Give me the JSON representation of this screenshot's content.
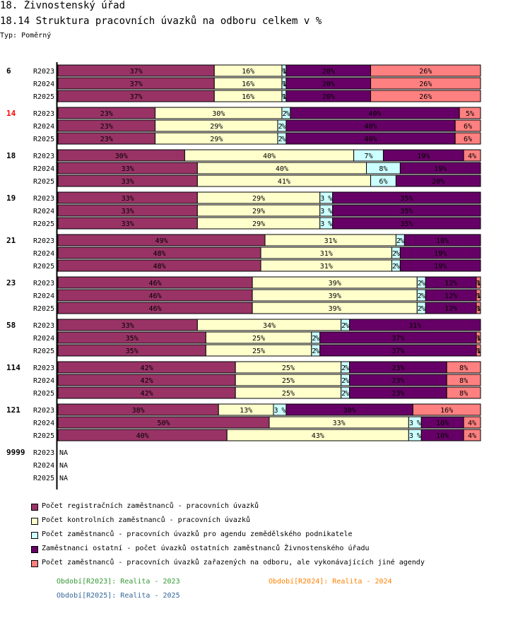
{
  "header": {
    "title": "18. Živnostenský úřad",
    "subtitle": "18.14 Struktura pracovních úvazků na odboru celkem v %",
    "typ": "Typ: Poměrný"
  },
  "chart_data": {
    "type": "bar",
    "orientation": "horizontal",
    "stacked": true,
    "normalized": true,
    "title": "18.14 Struktura pracovních úvazků na odboru celkem v %",
    "xlim": [
      0,
      100
    ],
    "unit": "%",
    "series": [
      {
        "name": "Počet registračních zaměstnanců - pracovních úvazků",
        "color": "#993366"
      },
      {
        "name": "Počet kontrolních zaměstnanců - pracovních úvazků",
        "color": "#ffffcc"
      },
      {
        "name": "Počet zaměstnanců - pracovních úvazků pro agendu zemědělského podnikatele",
        "color": "#ccffff"
      },
      {
        "name": "Zaměstnanci ostatní - počet úvazků ostatních zaměstnanců Živnostenského úřadu",
        "color": "#660066"
      },
      {
        "name": "Počet zaměstnanců - pracovních úvazků zařazených na odboru, ale vykonávajících jiné agendy",
        "color": "#ff8080"
      }
    ],
    "groups": [
      {
        "id": "6",
        "highlight": false,
        "rows": [
          {
            "period": "R2023",
            "values": [
              37,
              16,
              1,
              20,
              26
            ],
            "labels": [
              "37%",
              "16%",
              "1%",
              "20%",
              "26%"
            ]
          },
          {
            "period": "R2024",
            "values": [
              37,
              16,
              1,
              20,
              26
            ],
            "labels": [
              "37%",
              "16%",
              "1%",
              "20%",
              "26%"
            ]
          },
          {
            "period": "R2025",
            "values": [
              37,
              16,
              1,
              20,
              26
            ],
            "labels": [
              "37%",
              "16%",
              "1%",
              "20%",
              "26%"
            ]
          }
        ]
      },
      {
        "id": "14",
        "highlight": true,
        "rows": [
          {
            "period": "R2023",
            "values": [
              23,
              30,
              2,
              40,
              5
            ],
            "labels": [
              "23%",
              "30%",
              "2%",
              "40%",
              "5%"
            ]
          },
          {
            "period": "R2024",
            "values": [
              23,
              29,
              2,
              40,
              6
            ],
            "labels": [
              "23%",
              "29%",
              "2%",
              "40%",
              "6%"
            ]
          },
          {
            "period": "R2025",
            "values": [
              23,
              29,
              2,
              40,
              6
            ],
            "labels": [
              "23%",
              "29%",
              "2%",
              "40%",
              "6%"
            ]
          }
        ]
      },
      {
        "id": "18",
        "highlight": false,
        "rows": [
          {
            "period": "R2023",
            "values": [
              30,
              40,
              7,
              19,
              4
            ],
            "labels": [
              "30%",
              "40%",
              "7%",
              "19%",
              "4%"
            ]
          },
          {
            "period": "R2024",
            "values": [
              33,
              40,
              8,
              19,
              0
            ],
            "labels": [
              "33%",
              "40%",
              "8%",
              "19%",
              ""
            ]
          },
          {
            "period": "R2025",
            "values": [
              33,
              41,
              6,
              20,
              0
            ],
            "labels": [
              "33%",
              "41%",
              "6%",
              "20%",
              ""
            ]
          }
        ]
      },
      {
        "id": "19",
        "highlight": false,
        "rows": [
          {
            "period": "R2023",
            "values": [
              33,
              29,
              3,
              35,
              0
            ],
            "labels": [
              "33%",
              "29%",
              "3%",
              "35%",
              ""
            ]
          },
          {
            "period": "R2024",
            "values": [
              33,
              29,
              3,
              35,
              0
            ],
            "labels": [
              "33%",
              "29%",
              "3%",
              "35%",
              ""
            ]
          },
          {
            "period": "R2025",
            "values": [
              33,
              29,
              3,
              35,
              0
            ],
            "labels": [
              "33%",
              "29%",
              "3%",
              "35%",
              ""
            ]
          }
        ]
      },
      {
        "id": "21",
        "highlight": false,
        "rows": [
          {
            "period": "R2023",
            "values": [
              49,
              31,
              2,
              18,
              0
            ],
            "labels": [
              "49%",
              "31%",
              "2%",
              "18%",
              ""
            ]
          },
          {
            "period": "R2024",
            "values": [
              48,
              31,
              2,
              19,
              0
            ],
            "labels": [
              "48%",
              "31%",
              "2%",
              "19%",
              ""
            ]
          },
          {
            "period": "R2025",
            "values": [
              48,
              31,
              2,
              19,
              0
            ],
            "labels": [
              "48%",
              "31%",
              "2%",
              "19%",
              ""
            ]
          }
        ]
      },
      {
        "id": "23",
        "highlight": false,
        "rows": [
          {
            "period": "R2023",
            "values": [
              46,
              39,
              2,
              12,
              1
            ],
            "labels": [
              "46%",
              "39%",
              "2%",
              "12%",
              "1%"
            ]
          },
          {
            "period": "R2024",
            "values": [
              46,
              39,
              2,
              12,
              1
            ],
            "labels": [
              "46%",
              "39%",
              "2%",
              "12%",
              "1%"
            ]
          },
          {
            "period": "R2025",
            "values": [
              46,
              39,
              2,
              12,
              1
            ],
            "labels": [
              "46%",
              "39%",
              "2%",
              "12%",
              "1%"
            ]
          }
        ]
      },
      {
        "id": "58",
        "highlight": false,
        "rows": [
          {
            "period": "R2023",
            "values": [
              33,
              34,
              2,
              31,
              0
            ],
            "labels": [
              "33%",
              "34%",
              "2%",
              "31%",
              ""
            ]
          },
          {
            "period": "R2024",
            "values": [
              35,
              25,
              2,
              37,
              1
            ],
            "labels": [
              "35%",
              "25%",
              "2%",
              "37%",
              "1%"
            ]
          },
          {
            "period": "R2025",
            "values": [
              35,
              25,
              2,
              37,
              1
            ],
            "labels": [
              "35%",
              "25%",
              "2%",
              "37%",
              "1%"
            ]
          }
        ]
      },
      {
        "id": "114",
        "highlight": false,
        "rows": [
          {
            "period": "R2023",
            "values": [
              42,
              25,
              2,
              23,
              8
            ],
            "labels": [
              "42%",
              "25%",
              "2%",
              "23%",
              "8%"
            ]
          },
          {
            "period": "R2024",
            "values": [
              42,
              25,
              2,
              23,
              8
            ],
            "labels": [
              "42%",
              "25%",
              "2%",
              "23%",
              "8%"
            ]
          },
          {
            "period": "R2025",
            "values": [
              42,
              25,
              2,
              23,
              8
            ],
            "labels": [
              "42%",
              "25%",
              "2%",
              "23%",
              "8%"
            ]
          }
        ]
      },
      {
        "id": "121",
        "highlight": false,
        "rows": [
          {
            "period": "R2023",
            "values": [
              38,
              13,
              3,
              30,
              16
            ],
            "labels": [
              "38%",
              "13%",
              "3%",
              "30%",
              "16%"
            ]
          },
          {
            "period": "R2024",
            "values": [
              50,
              33,
              3,
              10,
              4
            ],
            "labels": [
              "50%",
              "33%",
              "3%",
              "10%",
              "4%"
            ]
          },
          {
            "period": "R2025",
            "values": [
              40,
              43,
              3,
              10,
              4
            ],
            "labels": [
              "40%",
              "43%",
              "3%",
              "10%",
              "4%"
            ]
          }
        ]
      },
      {
        "id": "9999",
        "highlight": false,
        "rows": [
          {
            "period": "R2023",
            "na": "NA"
          },
          {
            "period": "R2024",
            "na": "NA"
          },
          {
            "period": "R2025",
            "na": "NA"
          }
        ]
      }
    ]
  },
  "periods_legend": [
    {
      "text": "Období[R2023]: Realita - 2023",
      "color": "#339933"
    },
    {
      "text": "Období[R2024]: Realita - 2024",
      "color": "#ff8000"
    },
    {
      "text": "Období[R2025]: Realita - 2025",
      "color": "#336699"
    }
  ],
  "colors": {
    "highlight": "#ff0000",
    "axis": "#000000"
  }
}
